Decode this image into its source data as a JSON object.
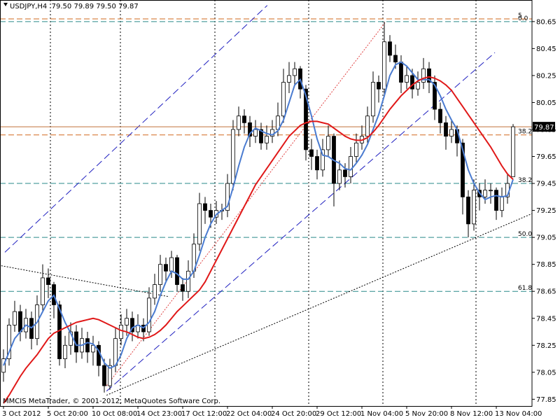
{
  "chart_data": {
    "type": "candlestick",
    "title": "USDJPY,H4  79.50 79.89 79.50 79.87",
    "watermark": "MMCIS MetaTrader, © 2001-2012, MetaQuotes Software Corp.",
    "categories": [
      "3 Oct 2012",
      null,
      null,
      null,
      null,
      null,
      null,
      null,
      "5 Oct 20:00",
      null,
      null,
      null,
      null,
      null,
      null,
      null,
      "10 Oct 08:00",
      null,
      null,
      null,
      null,
      null,
      null,
      null,
      "14 Oct 23:00",
      null,
      null,
      null,
      null,
      null,
      null,
      null,
      "17 Oct 12:00",
      null,
      null,
      null,
      null,
      null,
      null,
      null,
      "22 Oct 04:00",
      null,
      null,
      null,
      null,
      null,
      null,
      null,
      "24 Oct 20:00",
      null,
      null,
      null,
      null,
      null,
      null,
      null,
      "29 Oct 12:00",
      null,
      null,
      null,
      null,
      null,
      null,
      null,
      "1 Nov 04:00",
      null,
      null,
      null,
      null,
      null,
      null,
      null,
      "5 Nov 20:00",
      null,
      null,
      null,
      null,
      null,
      null,
      null,
      "8 Nov 12:00",
      null,
      null,
      null,
      null,
      null,
      null,
      null,
      "13 Nov 04:00",
      null,
      null,
      null
    ],
    "ohlc": [
      [
        78.05,
        78.22,
        77.98,
        78.15
      ],
      [
        78.15,
        78.45,
        78.1,
        78.4
      ],
      [
        78.4,
        78.58,
        78.35,
        78.5
      ],
      [
        78.5,
        78.55,
        78.28,
        78.35
      ],
      [
        78.35,
        78.52,
        78.3,
        78.45
      ],
      [
        78.45,
        78.5,
        78.22,
        78.3
      ],
      [
        78.3,
        78.62,
        78.25,
        78.55
      ],
      [
        78.55,
        78.85,
        78.5,
        78.75
      ],
      [
        78.75,
        78.82,
        78.6,
        78.7
      ],
      [
        78.7,
        78.72,
        78.45,
        78.55
      ],
      [
        78.55,
        78.58,
        78.1,
        78.15
      ],
      [
        78.15,
        78.32,
        78.08,
        78.25
      ],
      [
        78.25,
        78.42,
        78.18,
        78.35
      ],
      [
        78.35,
        78.4,
        78.12,
        78.2
      ],
      [
        78.2,
        78.38,
        78.15,
        78.3
      ],
      [
        78.3,
        78.35,
        78.12,
        78.2
      ],
      [
        78.2,
        78.32,
        78.1,
        78.25
      ],
      [
        78.25,
        78.28,
        78.02,
        78.1
      ],
      [
        78.1,
        78.15,
        77.9,
        77.95
      ],
      [
        77.95,
        78.15,
        77.92,
        78.1
      ],
      [
        78.1,
        78.38,
        78.05,
        78.3
      ],
      [
        78.3,
        78.48,
        78.25,
        78.4
      ],
      [
        78.4,
        78.52,
        78.32,
        78.45
      ],
      [
        78.45,
        78.5,
        78.28,
        78.35
      ],
      [
        78.35,
        78.48,
        78.3,
        78.4
      ],
      [
        78.4,
        78.45,
        78.28,
        78.35
      ],
      [
        78.35,
        78.68,
        78.32,
        78.6
      ],
      [
        78.6,
        78.78,
        78.55,
        78.7
      ],
      [
        78.7,
        78.92,
        78.65,
        78.85
      ],
      [
        78.85,
        78.9,
        78.72,
        78.8
      ],
      [
        78.8,
        78.95,
        78.75,
        78.9
      ],
      [
        78.9,
        78.92,
        78.65,
        78.7
      ],
      [
        78.7,
        78.75,
        78.58,
        78.65
      ],
      [
        78.65,
        78.88,
        78.6,
        78.8
      ],
      [
        78.8,
        79.08,
        78.75,
        79.0
      ],
      [
        79.0,
        79.38,
        78.95,
        79.3
      ],
      [
        79.3,
        79.35,
        79.15,
        79.25
      ],
      [
        79.25,
        79.3,
        79.12,
        79.2
      ],
      [
        79.2,
        79.32,
        79.15,
        79.25
      ],
      [
        79.25,
        79.3,
        79.18,
        79.25
      ],
      [
        79.25,
        79.52,
        79.2,
        79.45
      ],
      [
        79.45,
        79.92,
        79.4,
        79.85
      ],
      [
        79.85,
        80.02,
        79.8,
        79.95
      ],
      [
        79.95,
        80.0,
        79.82,
        79.9
      ],
      [
        79.9,
        79.95,
        79.72,
        79.8
      ],
      [
        79.8,
        79.92,
        79.75,
        79.85
      ],
      [
        79.85,
        79.9,
        79.7,
        79.75
      ],
      [
        79.75,
        79.88,
        79.7,
        79.8
      ],
      [
        79.8,
        79.92,
        79.75,
        79.85
      ],
      [
        79.85,
        80.05,
        79.8,
        79.95
      ],
      [
        79.95,
        80.3,
        79.9,
        80.2
      ],
      [
        80.2,
        80.35,
        80.12,
        80.25
      ],
      [
        80.25,
        80.35,
        80.18,
        80.3
      ],
      [
        80.3,
        80.32,
        80.08,
        80.15
      ],
      [
        80.15,
        80.18,
        79.62,
        79.7
      ],
      [
        79.7,
        79.78,
        79.55,
        79.65
      ],
      [
        79.65,
        79.7,
        79.48,
        79.55
      ],
      [
        79.55,
        79.78,
        79.5,
        79.7
      ],
      [
        79.7,
        79.88,
        79.65,
        79.8
      ],
      [
        79.8,
        79.82,
        79.28,
        79.45
      ],
      [
        79.45,
        79.62,
        79.4,
        79.55
      ],
      [
        79.55,
        79.6,
        79.42,
        79.5
      ],
      [
        79.5,
        79.72,
        79.45,
        79.65
      ],
      [
        79.65,
        79.82,
        79.6,
        79.75
      ],
      [
        79.75,
        79.88,
        79.7,
        79.8
      ],
      [
        79.8,
        80.02,
        79.75,
        79.95
      ],
      [
        79.95,
        80.28,
        79.9,
        80.2
      ],
      [
        80.2,
        80.25,
        80.05,
        80.15
      ],
      [
        80.15,
        80.65,
        80.1,
        80.5
      ],
      [
        80.5,
        80.55,
        80.35,
        80.4
      ],
      [
        80.4,
        80.48,
        80.3,
        80.35
      ],
      [
        80.35,
        80.4,
        80.12,
        80.2
      ],
      [
        80.2,
        80.32,
        80.15,
        80.25
      ],
      [
        80.25,
        80.3,
        80.08,
        80.15
      ],
      [
        80.15,
        80.28,
        80.1,
        80.2
      ],
      [
        80.2,
        80.38,
        80.15,
        80.3
      ],
      [
        80.3,
        80.35,
        80.12,
        80.2
      ],
      [
        80.2,
        80.25,
        79.92,
        80.0
      ],
      [
        80.0,
        80.05,
        79.82,
        79.9
      ],
      [
        79.9,
        79.95,
        79.7,
        79.8
      ],
      [
        79.8,
        79.92,
        79.75,
        79.85
      ],
      [
        79.85,
        79.88,
        79.65,
        79.75
      ],
      [
        79.75,
        79.78,
        79.22,
        79.35
      ],
      [
        79.35,
        79.4,
        79.05,
        79.15
      ],
      [
        79.15,
        79.48,
        79.1,
        79.4
      ],
      [
        79.4,
        79.45,
        79.25,
        79.35
      ],
      [
        79.35,
        79.48,
        79.3,
        79.4
      ],
      [
        79.4,
        79.45,
        79.3,
        79.4
      ],
      [
        79.4,
        79.42,
        79.18,
        79.25
      ],
      [
        79.25,
        79.42,
        79.2,
        79.35
      ],
      [
        79.35,
        79.52,
        79.3,
        79.45
      ],
      [
        79.5,
        79.89,
        79.5,
        79.87
      ]
    ],
    "up_color": "#ffffff",
    "down_color": "#000000",
    "wick_color": "#000000",
    "series": [
      {
        "color": "#4a7bd0",
        "values": [
          78.1,
          78.2,
          78.3,
          78.35,
          78.4,
          78.38,
          78.42,
          78.5,
          78.58,
          78.62,
          78.52,
          78.42,
          78.34,
          78.25,
          78.25,
          78.27,
          78.26,
          78.21,
          78.12,
          78.08,
          78.1,
          78.18,
          78.3,
          78.38,
          78.4,
          78.38,
          78.42,
          78.5,
          78.62,
          78.72,
          78.8,
          78.78,
          78.74,
          78.74,
          78.8,
          78.92,
          79.05,
          79.15,
          79.22,
          79.25,
          79.28,
          79.42,
          79.58,
          79.72,
          79.82,
          79.86,
          79.84,
          79.82,
          79.81,
          79.84,
          79.92,
          80.05,
          80.18,
          80.22,
          80.1,
          79.95,
          79.78,
          79.66,
          79.65,
          79.62,
          79.6,
          79.56,
          79.55,
          79.6,
          79.66,
          79.74,
          79.85,
          79.96,
          80.1,
          80.25,
          80.33,
          80.35,
          80.32,
          80.27,
          80.22,
          80.22,
          80.22,
          80.18,
          80.1,
          80.0,
          79.92,
          79.85,
          79.7,
          79.55,
          79.45,
          79.38,
          79.33,
          79.35,
          79.36,
          79.35,
          79.36,
          79.48
        ]
      },
      {
        "color": "#e01818",
        "values": [
          77.82,
          77.88,
          77.95,
          78.02,
          78.08,
          78.13,
          78.18,
          78.24,
          78.3,
          78.34,
          78.36,
          78.38,
          78.4,
          78.42,
          78.43,
          78.44,
          78.45,
          78.44,
          78.42,
          78.4,
          78.38,
          78.36,
          78.35,
          78.33,
          78.31,
          78.3,
          78.31,
          78.33,
          78.36,
          78.4,
          78.45,
          78.5,
          78.54,
          78.58,
          78.62,
          78.66,
          78.72,
          78.8,
          78.88,
          78.96,
          79.04,
          79.12,
          79.2,
          79.28,
          79.36,
          79.44,
          79.5,
          79.56,
          79.62,
          79.68,
          79.74,
          79.8,
          79.84,
          79.88,
          79.9,
          79.91,
          79.91,
          79.9,
          79.89,
          79.86,
          79.83,
          79.8,
          79.78,
          79.77,
          79.77,
          79.79,
          79.83,
          79.88,
          79.94,
          80.0,
          80.05,
          80.1,
          80.14,
          80.18,
          80.21,
          80.23,
          80.24,
          80.23,
          80.21,
          80.18,
          80.14,
          80.08,
          80.02,
          79.96,
          79.9,
          79.84,
          79.78,
          79.72,
          79.65,
          79.58,
          79.52,
          79.48
        ]
      }
    ],
    "ylim": [
      77.8,
      80.81
    ],
    "yticks": [
      77.85,
      78.05,
      78.25,
      78.45,
      78.65,
      78.85,
      79.05,
      79.25,
      79.45,
      79.65,
      79.85,
      80.05,
      80.25,
      80.45,
      80.65
    ],
    "current_price": 79.87,
    "fib_levels": [
      {
        "label": "0.0",
        "price": 80.65,
        "color": "#2a8a8a"
      },
      {
        "label": "38.2",
        "price": 79.45,
        "color": "#2a8a8a"
      },
      {
        "label": "50.0",
        "price": 79.05,
        "color": "#2a8a8a"
      },
      {
        "label": "61.8",
        "price": 78.65,
        "color": "#2a8a8a"
      },
      {
        "label": "5",
        "price": 80.67,
        "color": "#d2691e"
      },
      {
        "label": "38.2",
        "price": 79.81,
        "color": "#d2691e"
      }
    ],
    "trendlines": [
      {
        "from": [
          0.25,
          78.94
        ],
        "to": [
          47.1,
          80.77
        ],
        "color": "#2020c0",
        "style": "dash"
      },
      {
        "from": [
          18.4,
          77.91
        ],
        "to": [
          87.75,
          80.42
        ],
        "color": "#2020c0",
        "style": "dash"
      },
      {
        "from": [
          18.4,
          77.95
        ],
        "to": [
          68.1,
          80.64
        ],
        "color": "#e04040",
        "style": "dot"
      },
      {
        "from": [
          18.4,
          77.88
        ],
        "to": [
          94.6,
          79.23
        ],
        "color": "#000000",
        "style": "dot"
      },
      {
        "from": [
          -0.4,
          78.84
        ],
        "to": [
          29.6,
          78.61
        ],
        "color": "#000000",
        "style": "dot"
      }
    ]
  }
}
